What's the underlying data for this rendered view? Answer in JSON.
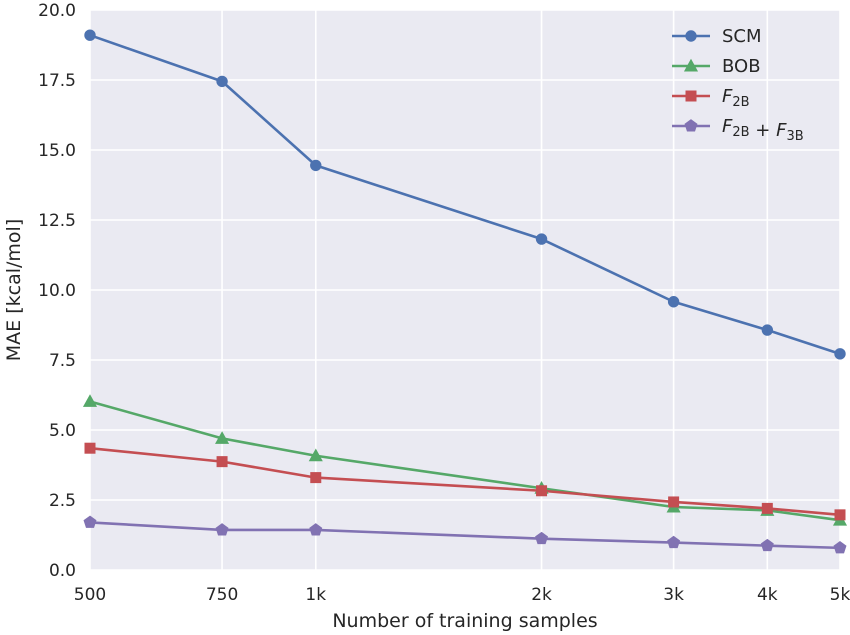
{
  "chart_data": {
    "type": "line",
    "xlabel": "Number of training samples",
    "ylabel": "MAE [kcal/mol]",
    "x": [
      500,
      750,
      1000,
      2000,
      3000,
      4000,
      5000
    ],
    "x_tick_labels": [
      "500",
      "750",
      "1k",
      "2k",
      "3k",
      "4k",
      "5k"
    ],
    "ylim": [
      0,
      20
    ],
    "y_ticks": [
      0,
      2.5,
      5,
      7.5,
      10,
      12.5,
      15,
      17.5,
      20
    ],
    "y_tick_labels": [
      "0.0",
      "2.5",
      "5.0",
      "7.5",
      "10.0",
      "12.5",
      "15.0",
      "17.5",
      "20.0"
    ],
    "grid": true,
    "legend_position": "top-right",
    "series": [
      {
        "name": "SCM",
        "name_parts": [
          {
            "text": "SCM",
            "sub": ""
          }
        ],
        "color": "#4c72b0",
        "marker": "circle",
        "values": [
          19.1,
          17.45,
          14.45,
          11.82,
          9.58,
          8.57,
          7.72
        ]
      },
      {
        "name": "BOB",
        "name_parts": [
          {
            "text": "BOB",
            "sub": ""
          }
        ],
        "color": "#55a868",
        "marker": "triangle",
        "values": [
          6.02,
          4.7,
          4.08,
          2.92,
          2.25,
          2.13,
          1.78
        ]
      },
      {
        "name": "F2B",
        "name_parts": [
          {
            "text": "F",
            "sub": "2B",
            "italic": true
          }
        ],
        "color": "#c44e52",
        "marker": "square",
        "values": [
          4.35,
          3.87,
          3.3,
          2.83,
          2.43,
          2.2,
          1.97
        ]
      },
      {
        "name": "F2B + F3B",
        "name_parts": [
          {
            "text": "F",
            "sub": "2B",
            "italic": true
          },
          {
            "text": " + ",
            "sub": ""
          },
          {
            "text": "F",
            "sub": "3B",
            "italic": true
          }
        ],
        "color": "#8172b2",
        "marker": "pentagon",
        "values": [
          1.7,
          1.43,
          1.43,
          1.12,
          0.98,
          0.87,
          0.79
        ]
      }
    ]
  }
}
